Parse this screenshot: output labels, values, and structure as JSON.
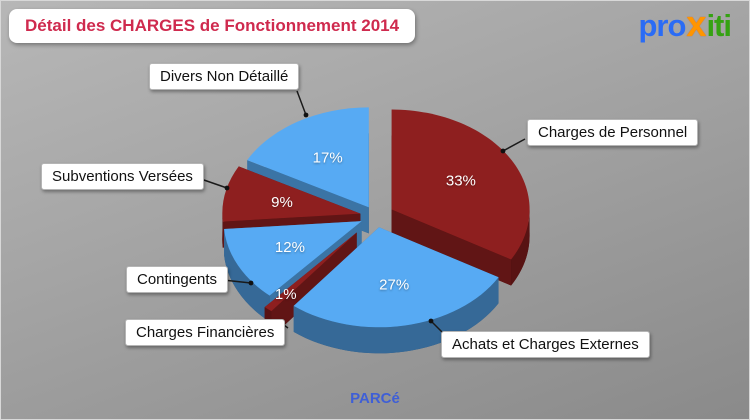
{
  "header": {
    "title": "Détail des CHARGES de Fonctionnement 2014",
    "title_color": "#cf2a4e",
    "logo": {
      "part1": "pro",
      "part2": "x",
      "part3": "iti",
      "colors": {
        "pro": "#2a6cf5",
        "x": "#ff9500",
        "iti": "#35a212"
      }
    }
  },
  "footer": {
    "entity": "PARCé",
    "color": "#3f5fd6"
  },
  "chart_data": {
    "type": "pie",
    "style": "3d-exploded",
    "title": "Détail des CHARGES de Fonctionnement 2014",
    "unit": "%",
    "labels": [
      "Charges de Personnel",
      "Achats et Charges Externes",
      "Charges Financières",
      "Contingents",
      "Subventions Versées",
      "Divers Non Détaillé"
    ],
    "values": [
      33,
      27,
      1,
      12,
      9,
      17
    ],
    "colors": [
      "#8e1f1f",
      "#57aaf3",
      "#8e1f1f",
      "#57aaf3",
      "#8e1f1f",
      "#57aaf3"
    ],
    "start_angle_deg": 0,
    "direction": "clockwise",
    "legend_position": "callouts",
    "background": "gray-gradient"
  }
}
